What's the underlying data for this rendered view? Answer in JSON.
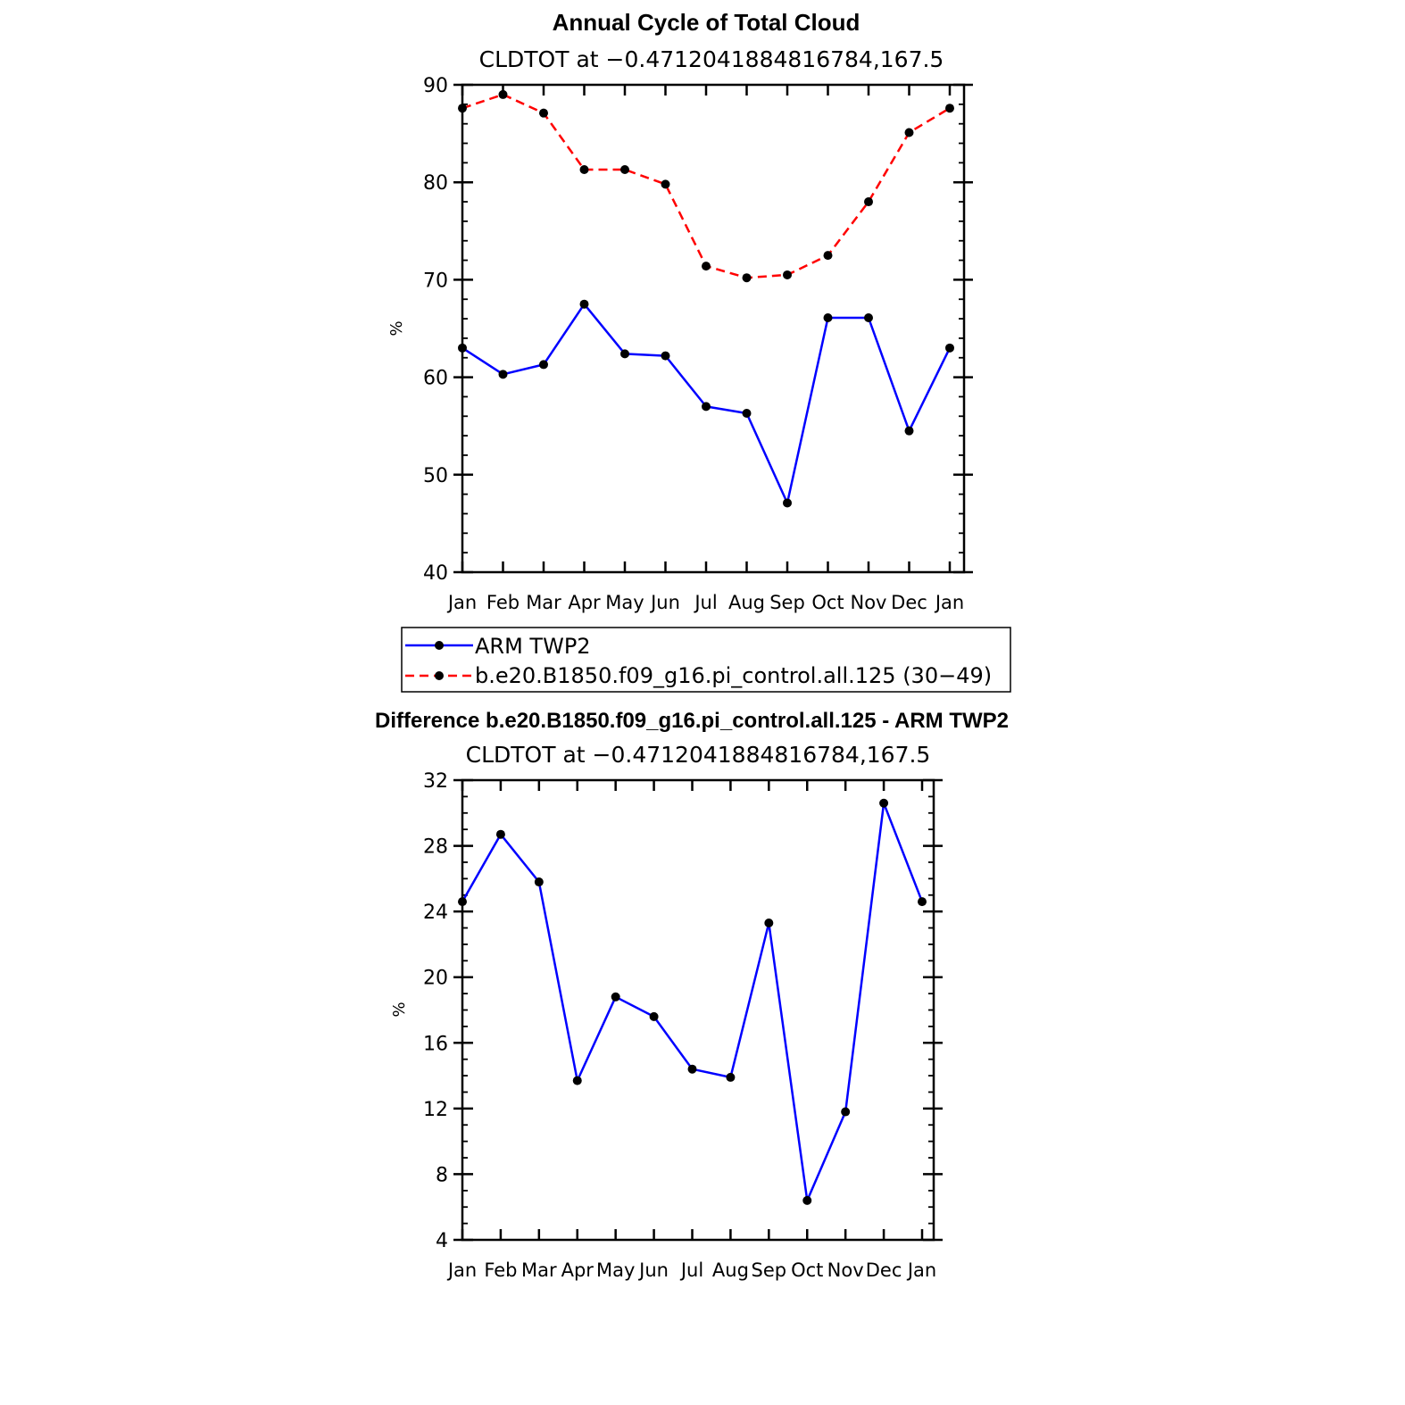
{
  "chart_data": [
    {
      "type": "line",
      "title": "Annual Cycle of Total Cloud",
      "subtitle": "CLDTOT at −0.4712041884816784,167.5",
      "xlabel": "",
      "ylabel": "%",
      "categories": [
        "Jan",
        "Feb",
        "Mar",
        "Apr",
        "May",
        "Jun",
        "Jul",
        "Aug",
        "Sep",
        "Oct",
        "Nov",
        "Dec",
        "Jan"
      ],
      "ylim": [
        40,
        90
      ],
      "yticks": [
        40,
        50,
        60,
        70,
        80,
        90
      ],
      "y_minor_step": 2,
      "grid": false,
      "legend_position": "bottom",
      "series": [
        {
          "name": "ARM TWP2",
          "color": "#0000ff",
          "dash": "solid",
          "values": [
            63.0,
            60.3,
            61.3,
            67.5,
            62.4,
            62.2,
            57.0,
            56.3,
            47.1,
            66.1,
            66.1,
            54.5,
            63.0
          ]
        },
        {
          "name": "b.e20.B1850.f09_g16.pi_control.all.125 (30−49)",
          "color": "#ff0000",
          "dash": "dashed",
          "values": [
            87.6,
            89.0,
            87.1,
            81.3,
            81.3,
            79.8,
            71.4,
            70.2,
            70.5,
            72.5,
            78.0,
            85.1,
            87.6
          ]
        }
      ]
    },
    {
      "type": "line",
      "title": "Difference b.e20.B1850.f09_g16.pi_control.all.125 - ARM TWP2",
      "subtitle": "CLDTOT at −0.4712041884816784,167.5",
      "xlabel": "",
      "ylabel": "%",
      "categories": [
        "Jan",
        "Feb",
        "Mar",
        "Apr",
        "May",
        "Jun",
        "Jul",
        "Aug",
        "Sep",
        "Oct",
        "Nov",
        "Dec",
        "Jan"
      ],
      "ylim": [
        4,
        32
      ],
      "yticks": [
        4,
        8,
        12,
        16,
        20,
        24,
        28,
        32
      ],
      "y_minor_step": 1,
      "grid": false,
      "series": [
        {
          "color": "#0000ff",
          "dash": "solid",
          "values": [
            24.6,
            28.7,
            25.8,
            13.7,
            18.8,
            17.6,
            14.4,
            13.9,
            23.3,
            6.4,
            11.8,
            30.6,
            24.6
          ]
        }
      ]
    }
  ]
}
